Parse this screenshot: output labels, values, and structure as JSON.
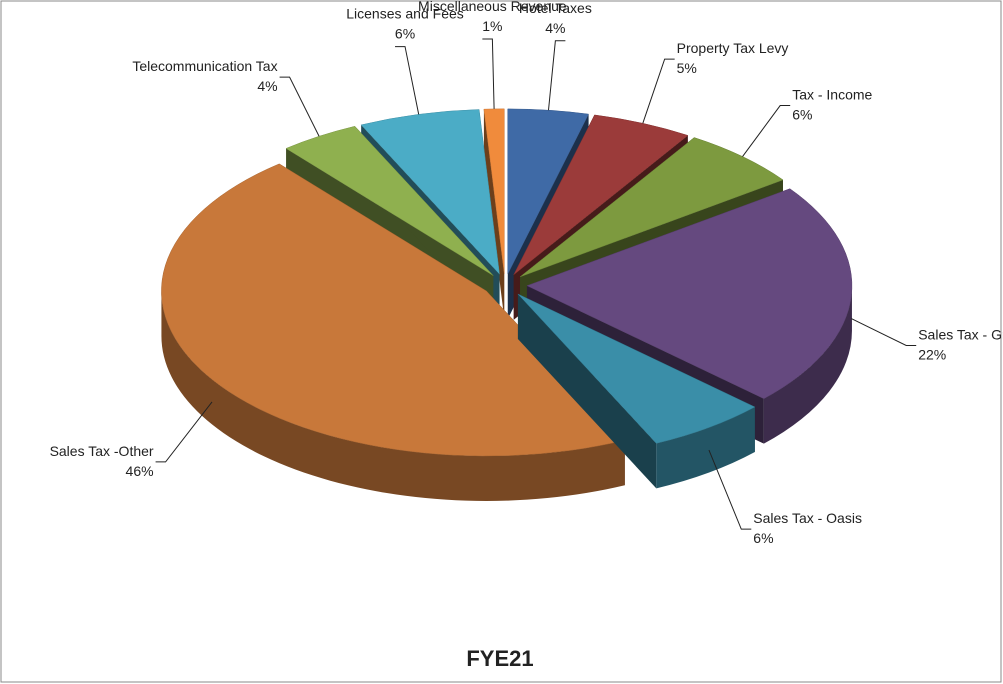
{
  "chart_data": {
    "type": "pie3d",
    "title": "FYE21",
    "categories": [
      "Hotel Taxes",
      "Property Tax Levy",
      "Tax - Income",
      "Sales Tax - Grainger",
      "Sales Tax - Oasis",
      "Sales Tax -Other",
      "Telecommunication Tax",
      "Licenses and Fees",
      "Miscellaneous Revenue"
    ],
    "values": [
      4,
      5,
      6,
      22,
      6,
      46,
      4,
      6,
      1
    ],
    "value_labels": [
      "4%",
      "5%",
      "6%",
      "22%",
      "6%",
      "46%",
      "4%",
      "6%",
      "1%"
    ],
    "colors": [
      "#3f6aa6",
      "#9b3b3a",
      "#7d9a3f",
      "#65497f",
      "#3a8ea8",
      "#c8783a",
      "#8fb04f",
      "#4bacc6",
      "#f08b3c"
    ]
  }
}
